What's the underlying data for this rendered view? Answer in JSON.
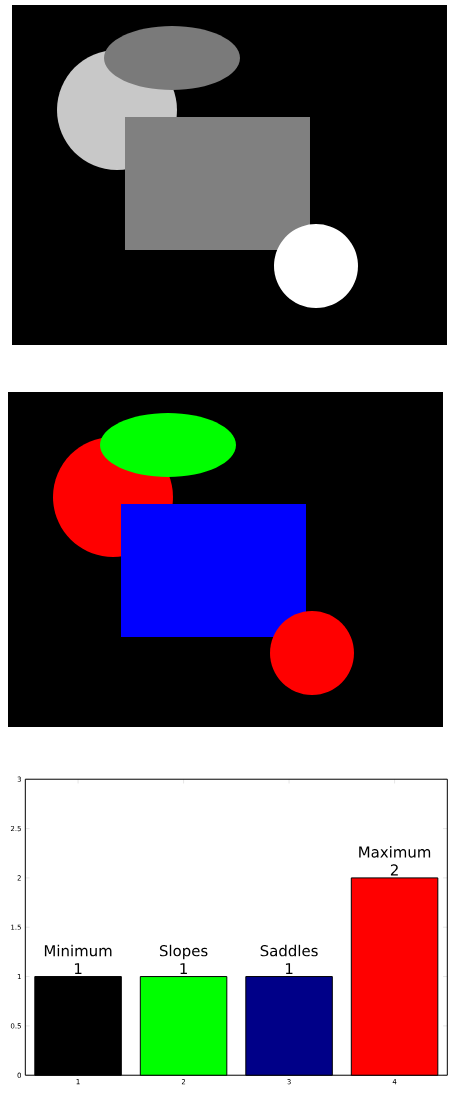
{
  "chart_data": {
    "type": "bar",
    "x": [
      1,
      2,
      3,
      4
    ],
    "values": [
      1,
      1,
      1,
      2
    ],
    "colors": [
      "#000000",
      "#00ff00",
      "#000088",
      "#ff0000"
    ],
    "xlim": [
      0.5,
      4.5
    ],
    "ylim": [
      0,
      3
    ],
    "xticks": [
      1,
      2,
      3,
      4
    ],
    "yticks": [
      0,
      0.5,
      1,
      1.5,
      2,
      2.5,
      3
    ],
    "data_labels": true,
    "grid": false,
    "annotations": [
      {
        "text": "Minimum",
        "x": 1,
        "y": 1
      },
      {
        "text": "Slopes",
        "x": 2,
        "y": 1
      },
      {
        "text": "Saddles",
        "x": 3,
        "y": 1
      },
      {
        "text": "Maximum",
        "x": 4,
        "y": 2
      }
    ]
  }
}
